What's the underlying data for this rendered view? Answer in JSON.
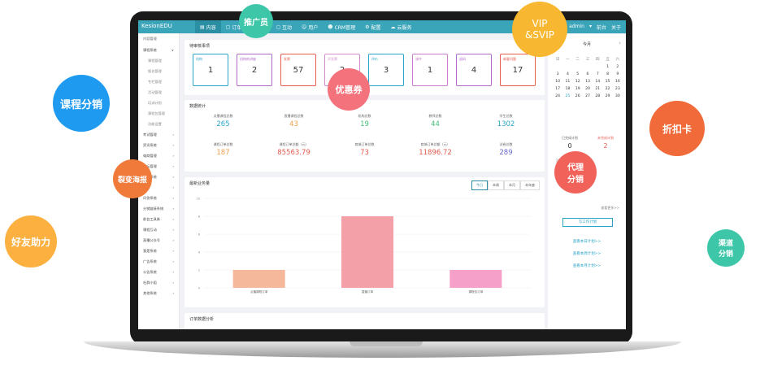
{
  "app": {
    "brand": "KesionEDU",
    "nav": [
      "内容",
      "订单",
      "营销",
      "互动",
      "用户",
      "CRM管理",
      "配置",
      "云服务"
    ],
    "user": "admin",
    "top_links": [
      "前台",
      "关于"
    ]
  },
  "sidebar": {
    "title": "内容管理",
    "items": [
      "课程系统",
      "课程管理",
      "报名管理",
      "专栏管理",
      "活动管理",
      "培训计划",
      "课程包管理",
      "功能设置",
      "考试管理",
      "资讯系统",
      "电商管理",
      "论坛管理",
      "商城系统",
      "问答",
      "问答系统",
      "分销链接系统",
      "前台工具券",
      "课程互动",
      "直播公众号",
      "我是系统",
      "广告系统",
      "公告系统",
      "社群小组",
      "其他系统"
    ]
  },
  "pending": {
    "title": "待审核事项",
    "cards": [
      {
        "label": "机构",
        "count": "1",
        "color": "#2aa4c8"
      },
      {
        "label": "机构的讲座",
        "count": "2",
        "color": "#b06bc8"
      },
      {
        "label": "发票",
        "count": "57",
        "color": "#e65c4e"
      },
      {
        "label": "开发票",
        "count": "2",
        "color": "#d48ed0"
      },
      {
        "label": "评价",
        "count": "3",
        "color": "#2aa4c8"
      },
      {
        "label": "课件",
        "count": "1",
        "color": "#c87bc8"
      },
      {
        "label": "退码",
        "count": "4",
        "color": "#b06bc8"
      },
      {
        "label": "邮客问题",
        "count": "17",
        "color": "#e65c4e"
      }
    ]
  },
  "stats": {
    "title": "数据统计",
    "items": [
      {
        "label": "点播课程总数",
        "value": "265",
        "color": "#2aa4c8"
      },
      {
        "label": "直播课程总数",
        "value": "43",
        "color": "#f0a04a"
      },
      {
        "label": "机构总数",
        "value": "19",
        "color": "#45c07a"
      },
      {
        "label": "教师总数",
        "value": "44",
        "color": "#45c07a"
      },
      {
        "label": "学生总数",
        "value": "1302",
        "color": "#2aa4c8"
      },
      {
        "label": "课程订单总数",
        "value": "187",
        "color": "#f0a04a"
      },
      {
        "label": "课程订单总额（元）",
        "value": "85563.79",
        "color": "#e65c4e"
      },
      {
        "label": "商城订单总数",
        "value": "73",
        "color": "#e65c4e"
      },
      {
        "label": "商城订单总额（元）",
        "value": "11896.72",
        "color": "#e65c4e"
      },
      {
        "label": "试卷总数",
        "value": "289",
        "color": "#6b6bd0"
      }
    ]
  },
  "chart_panel": {
    "title": "最新业务量",
    "tabs": [
      "今日",
      "本周",
      "本月",
      "本年度"
    ],
    "active_tab": "今日"
  },
  "chart_data": {
    "type": "bar",
    "categories": [
      "点播课程订单",
      "直播订单",
      "课程包订单"
    ],
    "values": [
      2,
      8,
      2
    ],
    "colors": [
      "#f5b89a",
      "#f4a0a8",
      "#f4a0c8"
    ],
    "ylim": [
      0,
      10
    ],
    "yticks": [
      "10",
      "8",
      "6",
      "4",
      "2",
      "0"
    ]
  },
  "order_panel": {
    "title": "订单数据分析"
  },
  "calendar": {
    "month": "今月",
    "weekdays": [
      "日",
      "一",
      "二",
      "三",
      "四",
      "五",
      "六"
    ],
    "days": [
      "",
      "",
      "",
      "",
      "",
      "1",
      "2",
      "3",
      "4",
      "5",
      "6",
      "7",
      "8",
      "9",
      "10",
      "11",
      "12",
      "13",
      "14",
      "15",
      "16",
      "17",
      "18",
      "19",
      "20",
      "21",
      "22",
      "23",
      "24",
      "25",
      "26",
      "27",
      "28",
      "29",
      "30"
    ],
    "today": "25"
  },
  "right": {
    "done_label": "已完成计划",
    "done_value": "0",
    "undone_label": "未完成计划",
    "undone_value": "2",
    "hint": "没有未完成计划",
    "more": "查看更多>>",
    "button": "写工作计划",
    "links": [
      "查看本日计划>>",
      "查看本周计划>>",
      "查看本月计划>>"
    ]
  },
  "bubbles": {
    "promoter": "推广员",
    "vip": "VIP\n&SVIP",
    "distribution": "课程分销",
    "coupon": "优惠券",
    "poster": "裂变海报",
    "discount_card": "折扣卡",
    "agent": "代理\n分销",
    "friend": "好友助力",
    "channel": "渠道\n分销"
  }
}
